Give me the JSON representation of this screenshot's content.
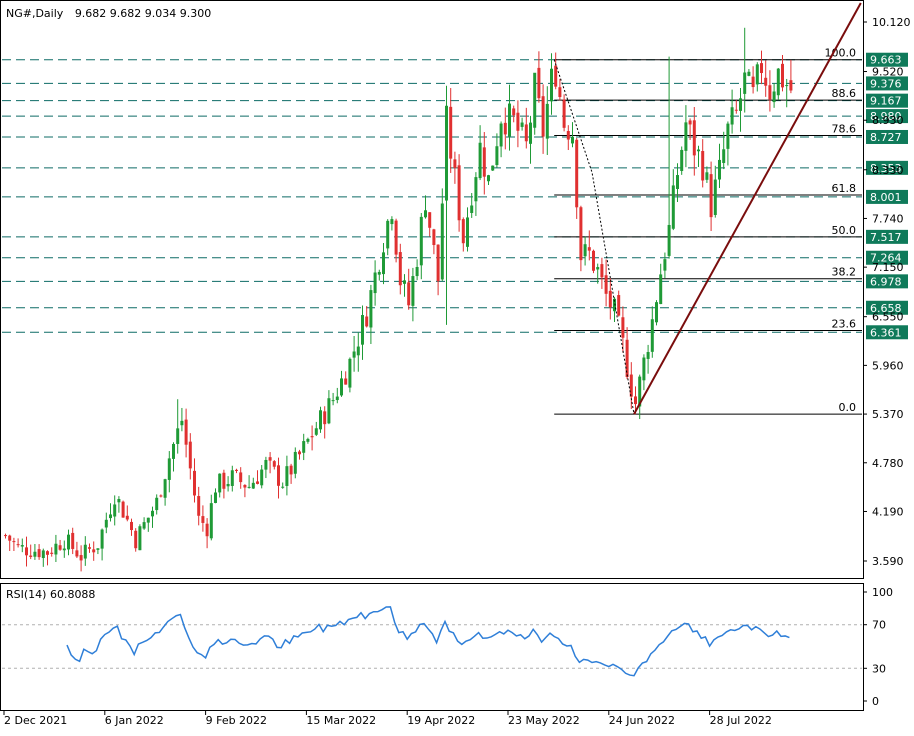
{
  "header": {
    "symbol": "NG#,Daily",
    "ohlc": "9.682 9.682 9.034 9.300"
  },
  "rsi": {
    "label": "RSI(14) 60.8088",
    "levels": [
      100,
      70,
      30,
      0
    ],
    "dashed_levels": [
      70,
      30
    ],
    "color": "#2f7fd8"
  },
  "colors": {
    "bull": "#1f9a36",
    "bear": "#e03030",
    "level_dash": "#0d6b66",
    "label_bg": "#0f7a5a",
    "fib": "#000000",
    "trendline": "#7a0d0d"
  },
  "chart_data": [
    {
      "type": "candlestick",
      "title": "NG#,Daily",
      "price_range": [
        3.4,
        10.35
      ],
      "y_ticks": [
        3.59,
        4.19,
        4.78,
        5.37,
        5.96,
        6.55,
        7.15,
        7.74,
        8.33,
        8.93,
        9.52,
        10.12
      ],
      "y_tick_labels": [
        "3.590",
        "4.190",
        "4.780",
        "5.370",
        "5.960",
        "6.550",
        "7.150",
        "7.740",
        "8.330",
        "8.930",
        "9.520",
        "10.120"
      ],
      "x_labels": [
        "2 Dec 2021",
        "6 Jan 2022",
        "9 Feb 2022",
        "15 Mar 2022",
        "19 Apr 2022",
        "23 May 2022",
        "24 Jun 2022",
        "28 Jul 2022"
      ],
      "x_label_positions": [
        0,
        24,
        48,
        72,
        96,
        120,
        144,
        168
      ],
      "bar_count": 188,
      "horizontal_levels": [
        {
          "value": 9.663,
          "label": "9.663"
        },
        {
          "value": 9.376,
          "label": "9.376"
        },
        {
          "value": 9.167,
          "label": "9.167"
        },
        {
          "value": 8.98,
          "label": "8.980"
        },
        {
          "value": 8.727,
          "label": "8.727"
        },
        {
          "value": 8.353,
          "label": "8.353"
        },
        {
          "value": 8.001,
          "label": "8.001"
        },
        {
          "value": 7.517,
          "label": "7.517"
        },
        {
          "value": 7.264,
          "label": "7.264"
        },
        {
          "value": 6.978,
          "label": "6.978"
        },
        {
          "value": 6.658,
          "label": "6.658"
        },
        {
          "value": 6.361,
          "label": "6.361"
        }
      ],
      "fibonacci": {
        "from_bar": 131,
        "to_bar": 215,
        "levels": [
          {
            "ratio": "100.0",
            "value": 9.663
          },
          {
            "ratio": "88.6",
            "value": 9.174
          },
          {
            "ratio": "78.6",
            "value": 8.745
          },
          {
            "ratio": "61.8",
            "value": 8.024
          },
          {
            "ratio": "50.0",
            "value": 7.517
          },
          {
            "ratio": "38.2",
            "value": 7.01
          },
          {
            "ratio": "23.6",
            "value": 6.383
          },
          {
            "ratio": "0.0",
            "value": 5.37
          }
        ]
      },
      "trendline": {
        "from": [
          150,
          5.37
        ],
        "to": [
          204,
          10.35
        ]
      },
      "dotted_line": [
        [
          131,
          9.663
        ],
        [
          140,
          8.3
        ],
        [
          150,
          5.37
        ]
      ],
      "candles": []
    }
  ]
}
